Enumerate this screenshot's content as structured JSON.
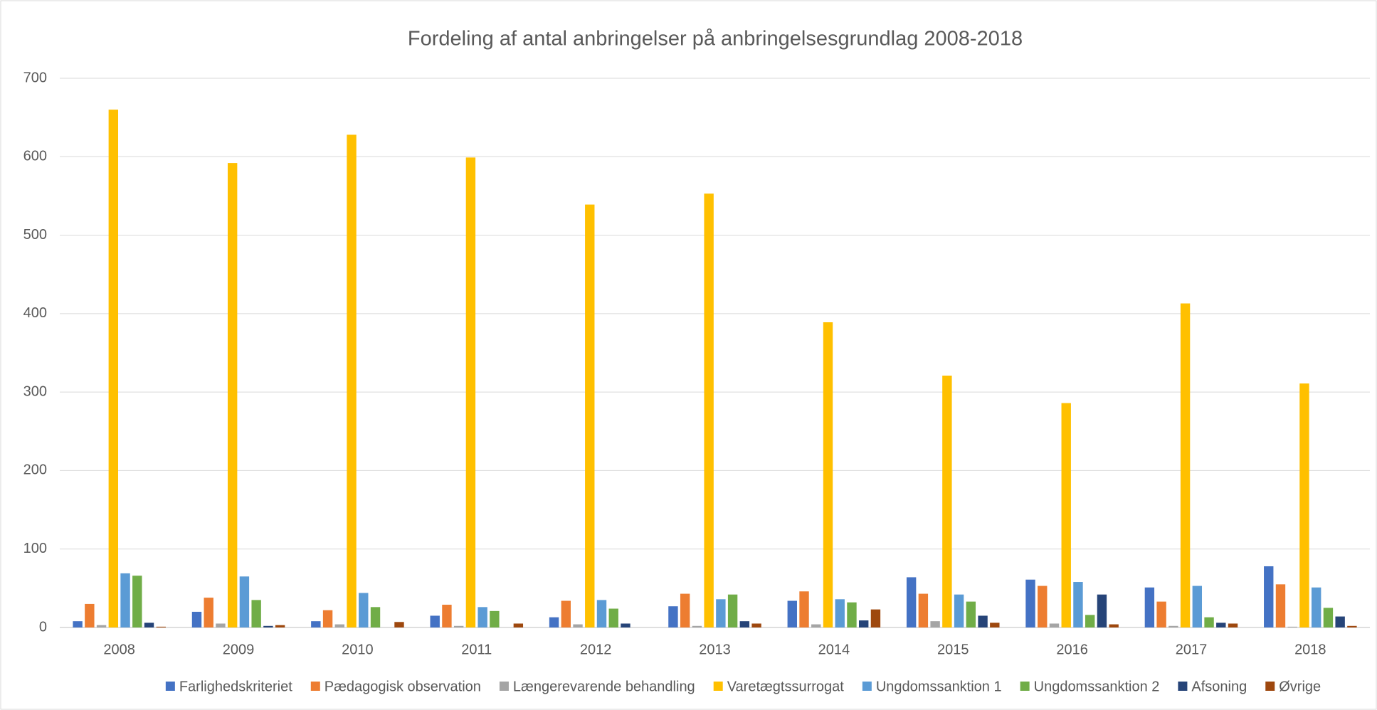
{
  "chart_data": {
    "type": "bar",
    "title": "Fordeling af antal anbringelser på anbringelsesgrundlag 2008-2018",
    "categories": [
      "2008",
      "2009",
      "2010",
      "2011",
      "2012",
      "2013",
      "2014",
      "2015",
      "2016",
      "2017",
      "2018"
    ],
    "series": [
      {
        "name": "Farlighedskriteriet",
        "color": "#4472c4",
        "values": [
          8,
          20,
          8,
          15,
          13,
          27,
          34,
          64,
          61,
          51,
          78
        ]
      },
      {
        "name": "Pædagogisk observation",
        "color": "#ed7d31",
        "values": [
          30,
          38,
          22,
          29,
          34,
          43,
          46,
          43,
          53,
          33,
          55
        ]
      },
      {
        "name": "Længerevarende behandling",
        "color": "#a5a5a5",
        "values": [
          3,
          5,
          4,
          2,
          4,
          2,
          4,
          8,
          5,
          2,
          1
        ]
      },
      {
        "name": "Varetægtssurrogat",
        "color": "#ffc000",
        "values": [
          660,
          592,
          628,
          599,
          539,
          553,
          389,
          321,
          286,
          413,
          311
        ]
      },
      {
        "name": "Ungdomssanktion 1",
        "color": "#5b9bd5",
        "values": [
          69,
          65,
          44,
          26,
          35,
          36,
          36,
          42,
          58,
          53,
          51
        ]
      },
      {
        "name": "Ungdomssanktion 2",
        "color": "#70ad47",
        "values": [
          66,
          35,
          26,
          21,
          24,
          42,
          32,
          33,
          16,
          13,
          25
        ]
      },
      {
        "name": "Afsoning",
        "color": "#264478",
        "values": [
          6,
          2,
          0,
          0,
          5,
          8,
          9,
          15,
          42,
          6,
          14
        ]
      },
      {
        "name": "Øvrige",
        "color": "#9e480e",
        "values": [
          1,
          3,
          7,
          5,
          0,
          5,
          23,
          6,
          4,
          5,
          2
        ]
      }
    ],
    "ylim": [
      0,
      700
    ],
    "yticks": [
      0,
      100,
      200,
      300,
      400,
      500,
      600,
      700
    ],
    "grid": true,
    "legend": "bottom"
  }
}
